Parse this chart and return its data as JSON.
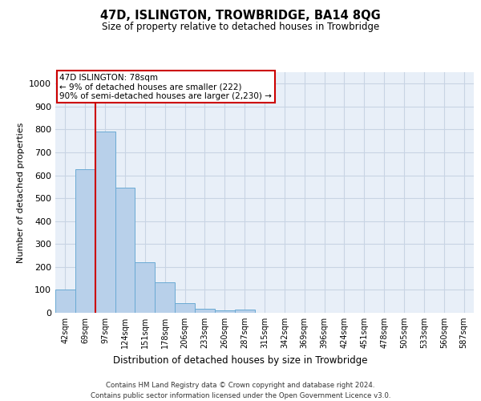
{
  "title": "47D, ISLINGTON, TROWBRIDGE, BA14 8QG",
  "subtitle": "Size of property relative to detached houses in Trowbridge",
  "xlabel": "Distribution of detached houses by size in Trowbridge",
  "ylabel": "Number of detached properties",
  "bar_labels": [
    "42sqm",
    "69sqm",
    "97sqm",
    "124sqm",
    "151sqm",
    "178sqm",
    "206sqm",
    "233sqm",
    "260sqm",
    "287sqm",
    "315sqm",
    "342sqm",
    "369sqm",
    "396sqm",
    "424sqm",
    "451sqm",
    "478sqm",
    "505sqm",
    "533sqm",
    "560sqm",
    "587sqm"
  ],
  "bar_values": [
    103,
    625,
    790,
    545,
    222,
    133,
    42,
    18,
    11,
    13,
    0,
    0,
    0,
    0,
    0,
    0,
    0,
    0,
    0,
    0,
    0
  ],
  "bar_color": "#b8d0ea",
  "bar_edge_color": "#6aaad4",
  "grid_color": "#c8d4e4",
  "bg_color": "#e8eff8",
  "vline_x": 1.5,
  "vline_color": "#cc0000",
  "annotation_text": "47D ISLINGTON: 78sqm\n← 9% of detached houses are smaller (222)\n90% of semi-detached houses are larger (2,230) →",
  "annotation_box_color": "#cc0000",
  "ylim": [
    0,
    1050
  ],
  "yticks": [
    0,
    100,
    200,
    300,
    400,
    500,
    600,
    700,
    800,
    900,
    1000
  ],
  "footer_line1": "Contains HM Land Registry data © Crown copyright and database right 2024.",
  "footer_line2": "Contains public sector information licensed under the Open Government Licence v3.0."
}
